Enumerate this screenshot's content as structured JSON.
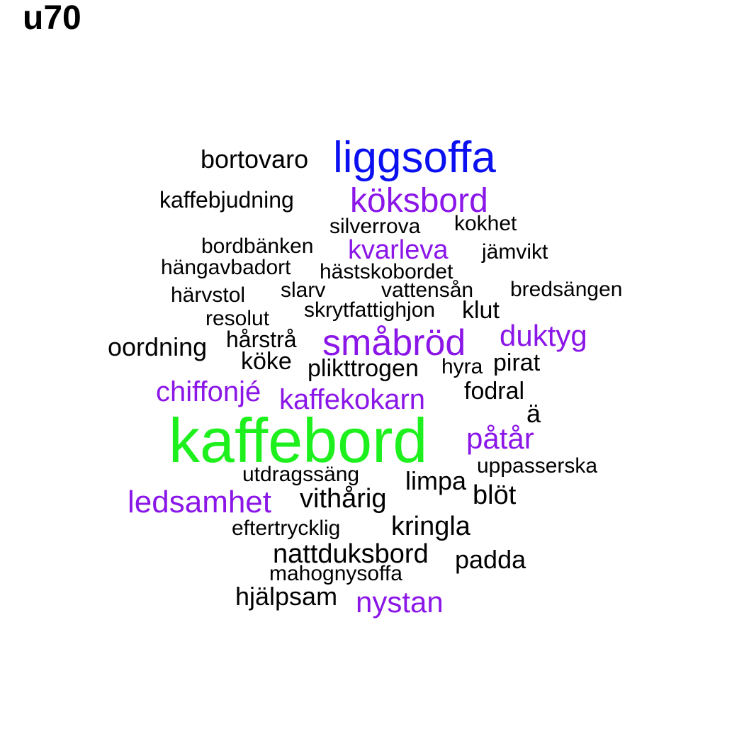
{
  "title": "u70",
  "palette": {
    "black": "#000000",
    "purple": "#8b16e8",
    "blue": "#0a10f0",
    "green": "#1ef01e"
  },
  "words": [
    {
      "text": "kaffebord",
      "color": "#1ef01e"
    },
    {
      "text": "liggsoffa",
      "color": "#0a10f0"
    },
    {
      "text": "köksbord",
      "color": "#8b16e8"
    },
    {
      "text": "småbröd",
      "color": "#8b16e8"
    },
    {
      "text": "duktyg",
      "color": "#8b16e8"
    },
    {
      "text": "kaffekokarn",
      "color": "#8b16e8"
    },
    {
      "text": "chiffonjé",
      "color": "#8b16e8"
    },
    {
      "text": "påtår",
      "color": "#8b16e8"
    },
    {
      "text": "ledsamhet",
      "color": "#8b16e8"
    },
    {
      "text": "nystan",
      "color": "#8b16e8"
    },
    {
      "text": "kvarleva",
      "color": "#8b16e8"
    },
    {
      "text": "bortovaro",
      "color": "#000000"
    },
    {
      "text": "kaffebjudning",
      "color": "#000000"
    },
    {
      "text": "silverrova",
      "color": "#000000"
    },
    {
      "text": "kokhet",
      "color": "#000000"
    },
    {
      "text": "bordbänken",
      "color": "#000000"
    },
    {
      "text": "jämvikt",
      "color": "#000000"
    },
    {
      "text": "hängavbadort",
      "color": "#000000"
    },
    {
      "text": "hästskobordet",
      "color": "#000000"
    },
    {
      "text": "härvstol",
      "color": "#000000"
    },
    {
      "text": "slarv",
      "color": "#000000"
    },
    {
      "text": "vattensån",
      "color": "#000000"
    },
    {
      "text": "bredsängen",
      "color": "#000000"
    },
    {
      "text": "skrytfattighjon",
      "color": "#000000"
    },
    {
      "text": "klut",
      "color": "#000000"
    },
    {
      "text": "resolut",
      "color": "#000000"
    },
    {
      "text": "oordning",
      "color": "#000000"
    },
    {
      "text": "hårstrå",
      "color": "#000000"
    },
    {
      "text": "köke",
      "color": "#000000"
    },
    {
      "text": "plikttrogen",
      "color": "#000000"
    },
    {
      "text": "hyra",
      "color": "#000000"
    },
    {
      "text": "pirat",
      "color": "#000000"
    },
    {
      "text": "fodral",
      "color": "#000000"
    },
    {
      "text": "ä",
      "color": "#000000"
    },
    {
      "text": "uppasserska",
      "color": "#000000"
    },
    {
      "text": "utdragssäng",
      "color": "#000000"
    },
    {
      "text": "limpa",
      "color": "#000000"
    },
    {
      "text": "blöt",
      "color": "#000000"
    },
    {
      "text": "vithårig",
      "color": "#000000"
    },
    {
      "text": "eftertrycklig",
      "color": "#000000"
    },
    {
      "text": "kringla",
      "color": "#000000"
    },
    {
      "text": "nattduksbord",
      "color": "#000000"
    },
    {
      "text": "padda",
      "color": "#000000"
    },
    {
      "text": "mahognysoffa",
      "color": "#000000"
    },
    {
      "text": "hjälpsam",
      "color": "#000000"
    }
  ]
}
